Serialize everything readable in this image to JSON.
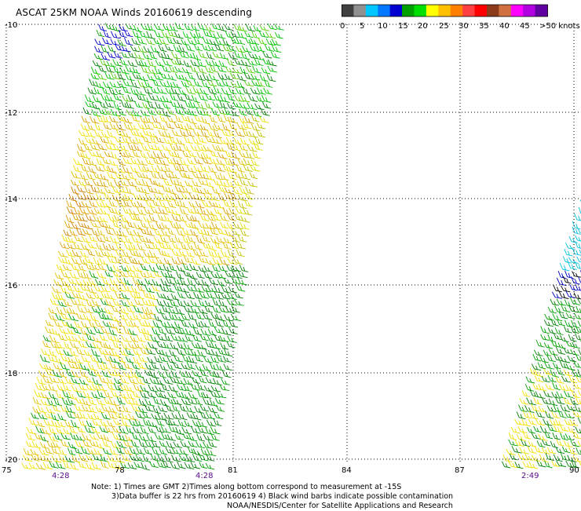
{
  "title": "ASCAT 25KM NOAA Winds 20160619 descending",
  "colorbar": {
    "colors": [
      "#404040",
      "#909090",
      "#00c8ff",
      "#0078ff",
      "#0000d0",
      "#00a000",
      "#00e000",
      "#ffff00",
      "#ffc000",
      "#ff8000",
      "#ff4040",
      "#ff0000",
      "#8b3a1a",
      "#d07040",
      "#ff00ff",
      "#b000e0",
      "#6000a0"
    ],
    "labels": [
      "0",
      "5",
      "10",
      "15",
      "20",
      "25",
      "30",
      "35",
      "40",
      "45",
      ">50 knots"
    ]
  },
  "map": {
    "lat_labels": [
      "-10",
      "-12",
      "-14",
      "-16",
      "-18",
      "-20"
    ],
    "lon_labels": [
      "75",
      "78",
      "81",
      "84",
      "87",
      "90"
    ],
    "time_labels": [
      {
        "text": "4:28",
        "lon": 76.5
      },
      {
        "text": "4:28",
        "lon": 80.3
      },
      {
        "text": "2:49",
        "lon": 88.8
      }
    ]
  },
  "notes": {
    "line1": "Note: 1) Times are GMT 2)Times along bottom correspond to measurement at -15S",
    "line2": "3)Data buffer is 22 hrs from 20160619 4) Black wind barbs indicate possible contamination",
    "line3": "NOAA/NESDIS/Center for Satellite Applications and Research"
  }
}
